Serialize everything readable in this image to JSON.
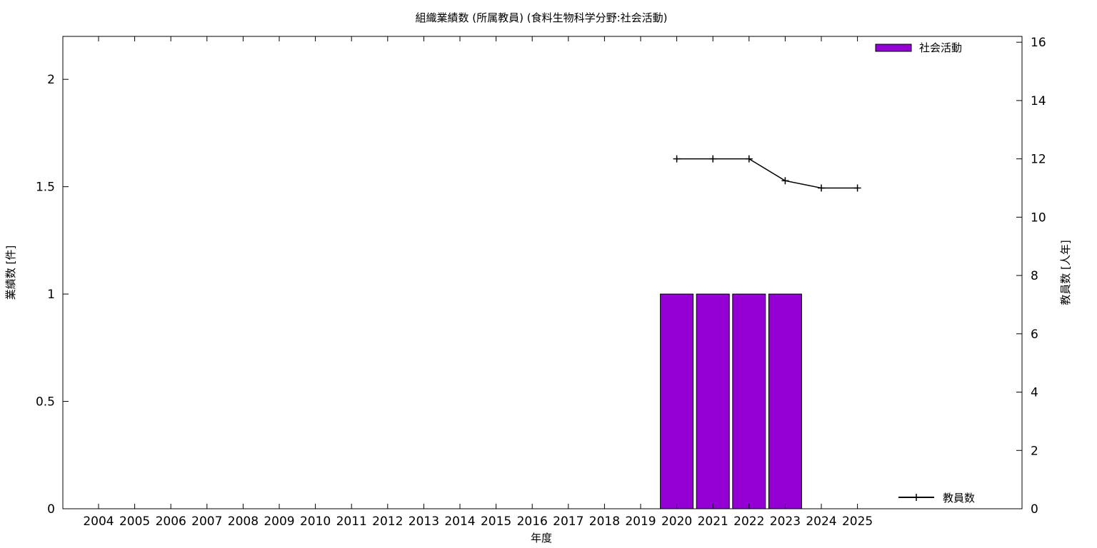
{
  "chart_data": {
    "type": "bar",
    "title": "組織業績数 (所属教員) (食料生物科学分野:社会活動)",
    "xlabel": "年度",
    "ylabel": "業績数 [件]",
    "y2label": "教員数 [人年]",
    "categories": [
      "2004",
      "2005",
      "2006",
      "2007",
      "2008",
      "2009",
      "2010",
      "2011",
      "2012",
      "2013",
      "2014",
      "2015",
      "2016",
      "2017",
      "2018",
      "2019",
      "2020",
      "2021",
      "2022",
      "2023",
      "2024",
      "2025"
    ],
    "ylim": [
      0,
      2.2
    ],
    "yticks": [
      0,
      0.5,
      1,
      1.5,
      2
    ],
    "y2lim": [
      0,
      16.2
    ],
    "y2ticks": [
      0,
      2,
      4,
      6,
      8,
      10,
      12,
      14,
      16
    ],
    "grid": false,
    "legend_position": "top-right",
    "series": [
      {
        "name": "社会活動",
        "type": "bar",
        "axis": "left",
        "color": "#9400d3",
        "values": [
          0,
          0,
          0,
          0,
          0,
          0,
          0,
          0,
          0,
          0,
          0,
          0,
          0,
          0,
          0,
          0,
          1,
          1,
          1,
          1,
          0,
          0
        ]
      },
      {
        "name": "教員数",
        "type": "line",
        "axis": "right",
        "color": "#000000",
        "x": [
          "2020",
          "2021",
          "2022",
          "2023",
          "2024",
          "2025"
        ],
        "values": [
          12,
          12,
          12,
          11.25,
          11,
          11
        ]
      }
    ]
  }
}
